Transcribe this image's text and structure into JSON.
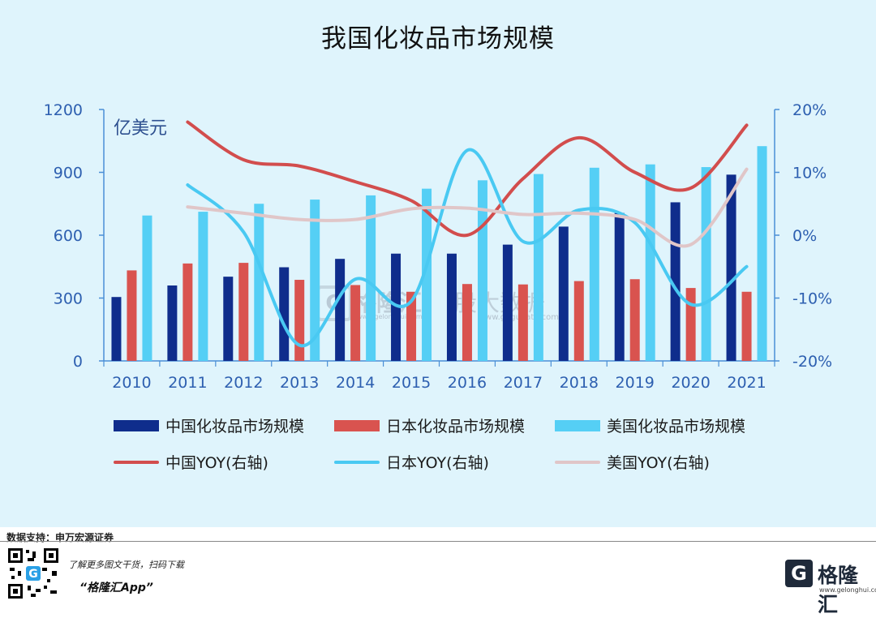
{
  "header": {
    "title": "我国化妆品市场规模"
  },
  "chart_data": {
    "type": "bar",
    "title": "我国化妆品市场规模",
    "unit_label": "亿美元",
    "categories": [
      "2010",
      "2011",
      "2012",
      "2013",
      "2014",
      "2015",
      "2016",
      "2017",
      "2018",
      "2019",
      "2020",
      "2021"
    ],
    "y_left": {
      "ylim": [
        0,
        1200
      ],
      "ticks": [
        0,
        300,
        600,
        900,
        1200
      ]
    },
    "y_right": {
      "ylim": [
        -20,
        20
      ],
      "ticks": [
        -20,
        -10,
        0,
        10,
        20
      ],
      "tick_labels": [
        "-20%",
        "-10%",
        "0%",
        "10%",
        "20%"
      ]
    },
    "series": [
      {
        "name": "中国化妆品市场规模",
        "type": "bar",
        "axis": "left",
        "color": "#0f2d8c",
        "values": [
          305,
          360,
          402,
          447,
          487,
          512,
          512,
          555,
          641,
          706,
          757,
          889
        ]
      },
      {
        "name": "日本化妆品市场规模",
        "type": "bar",
        "axis": "left",
        "color": "#d9534f",
        "values": [
          432,
          465,
          468,
          387,
          362,
          330,
          367,
          365,
          381,
          390,
          348,
          330
        ]
      },
      {
        "name": "美国化妆品市场规模",
        "type": "bar",
        "axis": "left",
        "color": "#55cff5",
        "values": [
          694,
          712,
          750,
          770,
          790,
          822,
          862,
          892,
          922,
          938,
          925,
          1025
        ]
      },
      {
        "name": "中国YOY(右轴)",
        "type": "line",
        "axis": "right",
        "color": "#d24d4d",
        "values": [
          null,
          18,
          12,
          11,
          8.5,
          5.5,
          0,
          9,
          15.5,
          10,
          7.5,
          17.5
        ]
      },
      {
        "name": "日本YOY(右轴)",
        "type": "line",
        "axis": "right",
        "color": "#49c9f2",
        "values": [
          null,
          8,
          0.5,
          -17.5,
          -7,
          -10.5,
          13.5,
          -1,
          4,
          2,
          -11,
          -5
        ]
      },
      {
        "name": "美国YOY(右轴)",
        "type": "line",
        "axis": "right",
        "color": "#e0c6c8",
        "values": [
          null,
          4.5,
          3.5,
          2.5,
          2.5,
          4.2,
          4.3,
          3.3,
          3.5,
          2.5,
          -1.5,
          10.5
        ]
      }
    ]
  },
  "legend": {
    "row1": [
      "中国化妆品市场规模",
      "日本化妆品市场规模",
      "美国化妆品市场规模"
    ],
    "row2": [
      "中国YOY(右轴)",
      "日本YOY(右轴)",
      "美国YOY(右轴)"
    ]
  },
  "watermark": {
    "text1": "格隆汇",
    "text2": "股大数据",
    "url1": "www.gelonghui.com",
    "url2": "www.gogudata.com",
    "logo_letter": "G"
  },
  "footer": {
    "source": "数据支持：申万宏源证券",
    "tip": "了解更多图文干货，扫码下载",
    "app": "“格隆汇App”",
    "brand_name": "格隆汇",
    "brand_url": "www.gelonghui.com",
    "logo_letter": "G"
  }
}
